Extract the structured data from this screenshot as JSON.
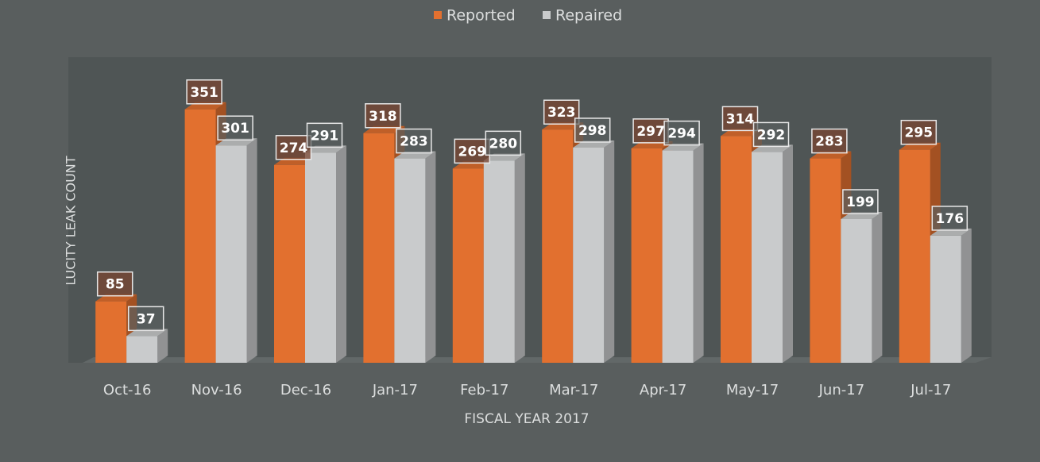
{
  "chart_data": {
    "type": "bar3d",
    "categories": [
      "Oct-16",
      "Nov-16",
      "Dec-16",
      "Jan-17",
      "Feb-17",
      "Mar-17",
      "Apr-17",
      "May-17",
      "Jun-17",
      "Jul-17"
    ],
    "series": [
      {
        "name": "Reported",
        "color": "#e2702f",
        "values": [
          85,
          351,
          274,
          318,
          269,
          323,
          297,
          314,
          283,
          295
        ]
      },
      {
        "name": "Repaired",
        "color": "#c9cbcc",
        "values": [
          37,
          301,
          291,
          283,
          280,
          298,
          294,
          292,
          199,
          176
        ]
      }
    ],
    "xlabel": "FISCAL YEAR 2017",
    "ylabel": "LUCITY LEAK COUNT",
    "ylim": [
      0,
      420
    ],
    "legend": "top"
  }
}
